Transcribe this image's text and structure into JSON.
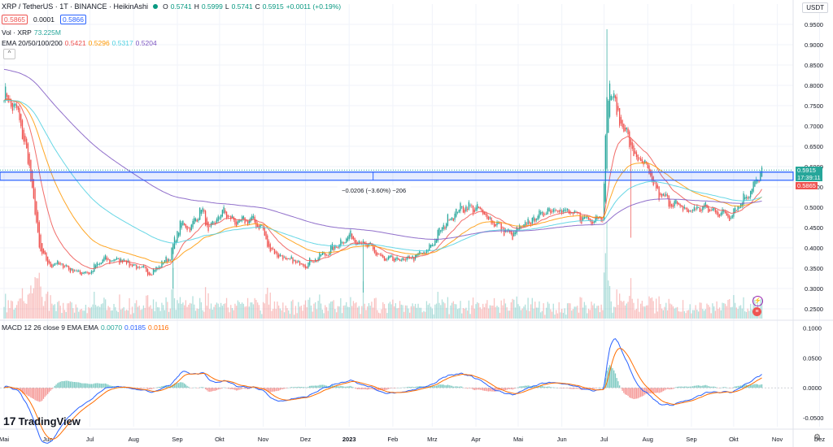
{
  "header": {
    "symbol_title": "XRP / TetherUS · 1T · BINANCE · HeikinAshi",
    "status_dot_color": "#089981",
    "ohlc": {
      "o_label": "O",
      "o_value": "0.5741",
      "h_label": "H",
      "h_value": "0.5999",
      "l_label": "L",
      "l_value": "0.5741",
      "c_label": "C",
      "c_value": "0.5915",
      "change": "+0.0011 (+0.19%)"
    },
    "sell_price": "0.5865",
    "spread": "0.0001",
    "buy_price": "0.5866"
  },
  "indicators": {
    "vol_label": "Vol · XRP",
    "vol_value": "73.225M",
    "ema_label": "EMA 20/50/100/200",
    "ema_values": [
      "0.5421",
      "0.5296",
      "0.5317",
      "0.5204"
    ],
    "ema_colors": [
      "#ef5350",
      "#ff9800",
      "#4dd0e1",
      "#7e57c2"
    ],
    "macd_label": "MACD 12 26 close 9 EMA EMA",
    "macd_values": [
      "0.0070",
      "0.0185",
      "0.0116"
    ],
    "macd_colors": [
      "#26a69a",
      "#2962ff",
      "#ff6d00"
    ]
  },
  "toolbar": {
    "currency": "USDT",
    "collapse_glyph": "^",
    "logo_text": "TradingView",
    "logo_glyph": "17",
    "settings_glyph": "⚙"
  },
  "measurement": {
    "label": "−0.0206 (−3.60%) −206"
  },
  "price_axis": {
    "current_price": "0.5915",
    "countdown": "17:39:11",
    "bid_price": "0.5865"
  },
  "chart_data": {
    "type": "candlestick",
    "title": "XRP / TetherUS · 1T · BINANCE · HeikinAshi",
    "ylim": [
      0.22,
      0.97
    ],
    "y_ticks": [
      "0.9500",
      "0.9000",
      "0.8500",
      "0.8000",
      "0.7500",
      "0.7000",
      "0.6500",
      "0.6000",
      "0.5500",
      "0.5000",
      "0.4500",
      "0.4000",
      "0.3500",
      "0.3000",
      "0.2500"
    ],
    "y_tick_values": [
      0.95,
      0.9,
      0.85,
      0.8,
      0.75,
      0.7,
      0.65,
      0.6,
      0.55,
      0.5,
      0.45,
      0.4,
      0.35,
      0.3,
      0.25
    ],
    "x_labels": [
      "Mai",
      "Jun",
      "Jul",
      "Aug",
      "Sep",
      "Okt",
      "Nov",
      "Dez",
      "2023",
      "Feb",
      "Mrz",
      "Apr",
      "Mai",
      "Jun",
      "Jul",
      "Aug",
      "Sep",
      "Okt",
      "Nov",
      "Dez"
    ],
    "x_label_days": [
      0,
      31,
      61,
      92,
      123,
      153,
      184,
      214,
      245,
      276,
      304,
      335,
      365,
      396,
      426,
      457,
      488,
      518,
      549,
      579
    ],
    "total_days": 620,
    "close_anchors_day": [
      0,
      10,
      18,
      25,
      31,
      40,
      52,
      61,
      70,
      85,
      95,
      105,
      118,
      125,
      133,
      140,
      145,
      155,
      165,
      175,
      183,
      188,
      200,
      214,
      230,
      245,
      260,
      270,
      285,
      300,
      315,
      325,
      332,
      338,
      345,
      360,
      375,
      390,
      405,
      415,
      425,
      428,
      430,
      432,
      436,
      440,
      447,
      455,
      465,
      475,
      485,
      495,
      505,
      515,
      525,
      531,
      536,
      538
    ],
    "close_anchors_price": [
      0.78,
      0.73,
      0.6,
      0.4,
      0.36,
      0.36,
      0.34,
      0.34,
      0.37,
      0.37,
      0.35,
      0.34,
      0.38,
      0.46,
      0.45,
      0.5,
      0.44,
      0.49,
      0.46,
      0.47,
      0.45,
      0.4,
      0.37,
      0.36,
      0.39,
      0.43,
      0.4,
      0.37,
      0.37,
      0.39,
      0.47,
      0.5,
      0.5,
      0.49,
      0.47,
      0.43,
      0.47,
      0.5,
      0.48,
      0.47,
      0.48,
      0.75,
      0.8,
      0.78,
      0.72,
      0.7,
      0.63,
      0.6,
      0.53,
      0.51,
      0.49,
      0.5,
      0.49,
      0.48,
      0.52,
      0.55,
      0.57,
      0.59
    ],
    "wick_spikes": [
      {
        "day": 428,
        "high": 0.938
      },
      {
        "day": 445,
        "low": 0.425
      },
      {
        "day": 120,
        "low": 0.3
      },
      {
        "day": 255,
        "low": 0.29
      }
    ],
    "ema": [
      {
        "name": "EMA 20",
        "period": 20,
        "color": "#ef5350"
      },
      {
        "name": "EMA 50",
        "period": 50,
        "color": "#ff9800"
      },
      {
        "name": "EMA 100",
        "period": 100,
        "color": "#4dd0e1"
      },
      {
        "name": "EMA 200",
        "period": 200,
        "color": "#7e57c2",
        "seed": 0.84
      }
    ],
    "horizontal_levels": [
      {
        "price": 0.5865,
        "color": "#2962ff",
        "style": "solid"
      },
      {
        "price": 0.5915,
        "color": "#26a69a",
        "style": "dotted"
      }
    ],
    "zone": {
      "top": 0.5865,
      "bottom": 0.5664,
      "color": "#2962ff"
    },
    "macd": {
      "ylim": [
        -0.065,
        0.105
      ],
      "y_ticks": [
        "0.1000",
        "0.0500",
        "0.0000",
        "-0.0500"
      ],
      "y_tick_values": [
        0.1,
        0.05,
        0.0,
        -0.05
      ],
      "fast": 12,
      "slow": 26,
      "signal": 9
    },
    "up_color": "#26a69a",
    "down_color": "#ef5350"
  }
}
